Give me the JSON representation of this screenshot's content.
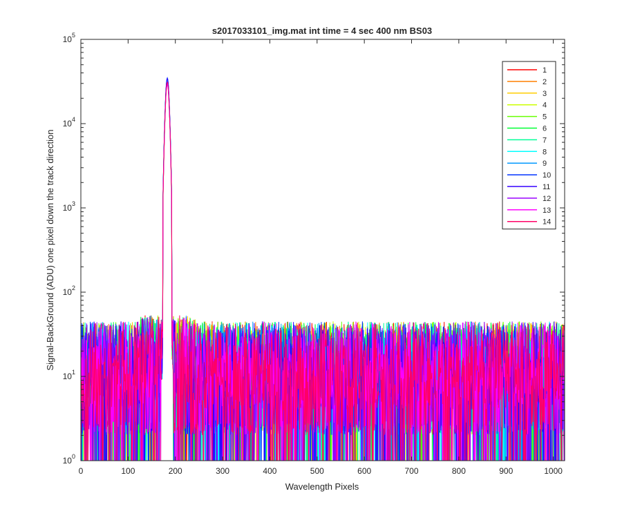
{
  "chart_data": {
    "type": "line",
    "title": "s2017033101_img.mat int time = 4 sec  400 nm BS03",
    "xlabel": "Wavelength Pixels",
    "ylabel": "Signal-BackGround (ADU) one pixel down the track direction",
    "xlim": [
      0,
      1024
    ],
    "ylim": [
      1,
      100000
    ],
    "yscale": "log",
    "grid": false,
    "legend_position": "top-right",
    "x_ticks": [
      {
        "value": 0,
        "label": "0"
      },
      {
        "value": 100,
        "label": "100"
      },
      {
        "value": 200,
        "label": "200"
      },
      {
        "value": 300,
        "label": "300"
      },
      {
        "value": 400,
        "label": "400"
      },
      {
        "value": 500,
        "label": "500"
      },
      {
        "value": 600,
        "label": "600"
      },
      {
        "value": 700,
        "label": "700"
      },
      {
        "value": 800,
        "label": "800"
      },
      {
        "value": 900,
        "label": "900"
      },
      {
        "value": 1000,
        "label": "1000"
      }
    ],
    "y_ticks": [
      {
        "value": 1,
        "base": "10",
        "exp": "0"
      },
      {
        "value": 10,
        "base": "10",
        "exp": "1"
      },
      {
        "value": 100,
        "base": "10",
        "exp": "2"
      },
      {
        "value": 1000,
        "base": "10",
        "exp": "3"
      },
      {
        "value": 10000,
        "base": "10",
        "exp": "4"
      },
      {
        "value": 100000,
        "base": "10",
        "exp": "5"
      }
    ],
    "peak": {
      "x": 183,
      "y_max": 35000,
      "y_min": 28000,
      "halfwidth": 9
    },
    "noise": {
      "typical": 12,
      "low": 2,
      "high": 45,
      "x_start": 0,
      "x_end": 1024,
      "gap": [
        170,
        195
      ]
    },
    "series": [
      {
        "name": "1",
        "color": "#ff0000",
        "peak": 33000
      },
      {
        "name": "2",
        "color": "#ff7f00",
        "peak": 31000
      },
      {
        "name": "3",
        "color": "#ffcc00",
        "peak": 30000
      },
      {
        "name": "4",
        "color": "#ccff00",
        "peak": 32000
      },
      {
        "name": "5",
        "color": "#66ff00",
        "peak": 30000
      },
      {
        "name": "6",
        "color": "#00ff33",
        "peak": 31000
      },
      {
        "name": "7",
        "color": "#00ff99",
        "peak": 32000
      },
      {
        "name": "8",
        "color": "#00ffff",
        "peak": 33000
      },
      {
        "name": "9",
        "color": "#0099ff",
        "peak": 34000
      },
      {
        "name": "10",
        "color": "#0033ff",
        "peak": 35000
      },
      {
        "name": "11",
        "color": "#3300ff",
        "peak": 34000
      },
      {
        "name": "12",
        "color": "#9900ff",
        "peak": 30000
      },
      {
        "name": "13",
        "color": "#ff00ff",
        "peak": 29000
      },
      {
        "name": "14",
        "color": "#ff0066",
        "peak": 31000
      }
    ]
  }
}
